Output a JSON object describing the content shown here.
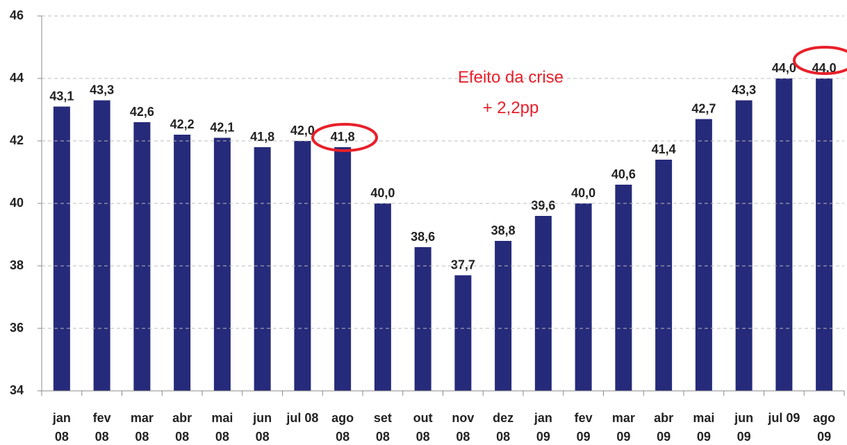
{
  "chart_data": {
    "type": "bar",
    "categories": [
      "jan\n08",
      "fev\n08",
      "mar\n08",
      "abr\n08",
      "mai\n08",
      "jun\n08",
      "jul 08",
      "ago\n08",
      "set\n08",
      "out\n08",
      "nov\n08",
      "dez\n08",
      "jan\n09",
      "fev\n09",
      "mar\n09",
      "abr\n09",
      "mai\n09",
      "jun\n09",
      "jul 09",
      "ago\n09"
    ],
    "values": [
      43.1,
      43.3,
      42.6,
      42.2,
      42.1,
      41.8,
      42.0,
      41.8,
      40.0,
      38.6,
      37.7,
      38.8,
      39.6,
      40.0,
      40.6,
      41.4,
      42.7,
      43.3,
      44.0,
      44.0
    ],
    "value_labels": [
      "43,1",
      "43,3",
      "42,6",
      "42,2",
      "42,1",
      "41,8",
      "42,0",
      "41,8",
      "40,0",
      "38,6",
      "37,7",
      "38,8",
      "39,6",
      "40,0",
      "40,6",
      "41,4",
      "42,7",
      "43,3",
      "44,0",
      "44,0"
    ],
    "color": "#262a7a",
    "ylim": [
      34,
      46
    ],
    "yticks": [
      34,
      36,
      38,
      40,
      42,
      44,
      46
    ],
    "grid": true,
    "annotation": "Efeito da crise\n+ 2,2pp",
    "annotation_color": "#e8202a"
  }
}
